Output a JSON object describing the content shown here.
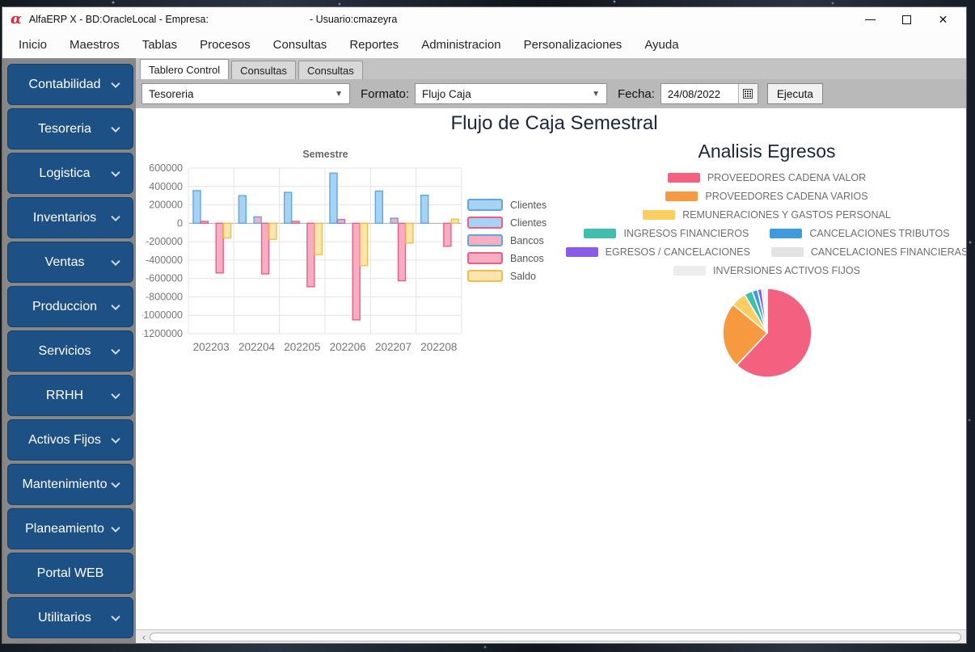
{
  "titlebar": {
    "logo": "α",
    "title_left": "AlfaERP X - BD:OracleLocal - Empresa:",
    "title_right": "- Usuario:cmazeyra"
  },
  "menu": {
    "items": [
      "Inicio",
      "Maestros",
      "Tablas",
      "Procesos",
      "Consultas",
      "Reportes",
      "Administracion",
      "Personalizaciones",
      "Ayuda"
    ]
  },
  "tabs": [
    {
      "label": "Tablero Control",
      "active": true
    },
    {
      "label": "Consultas",
      "active": false
    },
    {
      "label": "Consultas",
      "active": false
    }
  ],
  "toolbar": {
    "module_value": "Tesoreria",
    "formato_label": "Formato:",
    "formato_value": "Flujo Caja",
    "fecha_label": "Fecha:",
    "fecha_value": "24/08/2022",
    "ejecuta_label": "Ejecuta"
  },
  "sidebar": {
    "items": [
      {
        "label": "Contabilidad",
        "chevron": true
      },
      {
        "label": "Tesoreria",
        "chevron": true
      },
      {
        "label": "Logistica",
        "chevron": true
      },
      {
        "label": "Inventarios",
        "chevron": true
      },
      {
        "label": "Ventas",
        "chevron": true
      },
      {
        "label": "Produccion",
        "chevron": true
      },
      {
        "label": "Servicios",
        "chevron": true
      },
      {
        "label": "RRHH",
        "chevron": true
      },
      {
        "label": "Activos Fijos",
        "chevron": true
      },
      {
        "label": "Mantenimiento",
        "chevron": true
      },
      {
        "label": "Planeamiento",
        "chevron": true
      },
      {
        "label": "Portal WEB",
        "chevron": false
      },
      {
        "label": "Utilitarios",
        "chevron": true
      }
    ]
  },
  "chart_data": [
    {
      "type": "bar",
      "title": "Flujo de Caja Semestral",
      "subtitle": "Semestre",
      "categories": [
        "202203",
        "202204",
        "202205",
        "202206",
        "202207",
        "202208"
      ],
      "series": [
        {
          "name": "Clientes",
          "fill": "#A6D3F3",
          "stroke": "#5FA8DE",
          "values": [
            355000,
            300000,
            335000,
            545000,
            350000,
            305000
          ]
        },
        {
          "name": "Clientes",
          "fill": "#A6D3F3",
          "stroke": "#EE5D87",
          "values": [
            20000,
            0,
            20000,
            40000,
            0,
            0
          ]
        },
        {
          "name": "Bancos",
          "fill": "#F7AEC2",
          "stroke": "#5FA8DE",
          "values": [
            0,
            70000,
            0,
            0,
            55000,
            0
          ]
        },
        {
          "name": "Bancos",
          "fill": "#F7AEC2",
          "stroke": "#EE5D87",
          "values": [
            -540000,
            -550000,
            -690000,
            -1050000,
            -625000,
            -250000
          ]
        },
        {
          "name": "Saldo",
          "fill": "#FBE5AE",
          "stroke": "#EFBE4A",
          "values": [
            -160000,
            -175000,
            -340000,
            -460000,
            -215000,
            45000
          ]
        }
      ],
      "ylim": [
        -1200000,
        600000
      ],
      "ystep": 200000,
      "grid": true,
      "legend_position": "right"
    },
    {
      "type": "pie",
      "title": "Analisis Egresos",
      "slices": [
        {
          "label": "PROVEEDORES CADENA VALOR",
          "color": "#F4607F",
          "value": 62
        },
        {
          "label": "PROVEEDORES CADENA VARIOS",
          "color": "#F7993F",
          "value": 24
        },
        {
          "label": "REMUNERACIONES Y GASTOS PERSONAL",
          "color": "#FACE60",
          "value": 5.5
        },
        {
          "label": "INGRESOS FINANCIEROS",
          "color": "#40BFAE",
          "value": 3
        },
        {
          "label": "CANCELACIONES TRIBUTOS",
          "color": "#3E9BDC",
          "value": 2
        },
        {
          "label": "EGRESOS / CANCELACIONES",
          "color": "#8A5BE8",
          "value": 1.5
        },
        {
          "label": "CANCELACIONES FINANCIERAS",
          "color": "#E3E3E3",
          "value": 1
        },
        {
          "label": "INVERSIONES ACTIVOS FIJOS",
          "color": "#EDEDED",
          "value": 1
        }
      ],
      "legend_rows": [
        [
          0
        ],
        [
          1
        ],
        [
          2
        ],
        [
          3,
          4
        ],
        [
          5,
          6
        ],
        [
          7
        ]
      ],
      "legend_position": "top"
    }
  ]
}
